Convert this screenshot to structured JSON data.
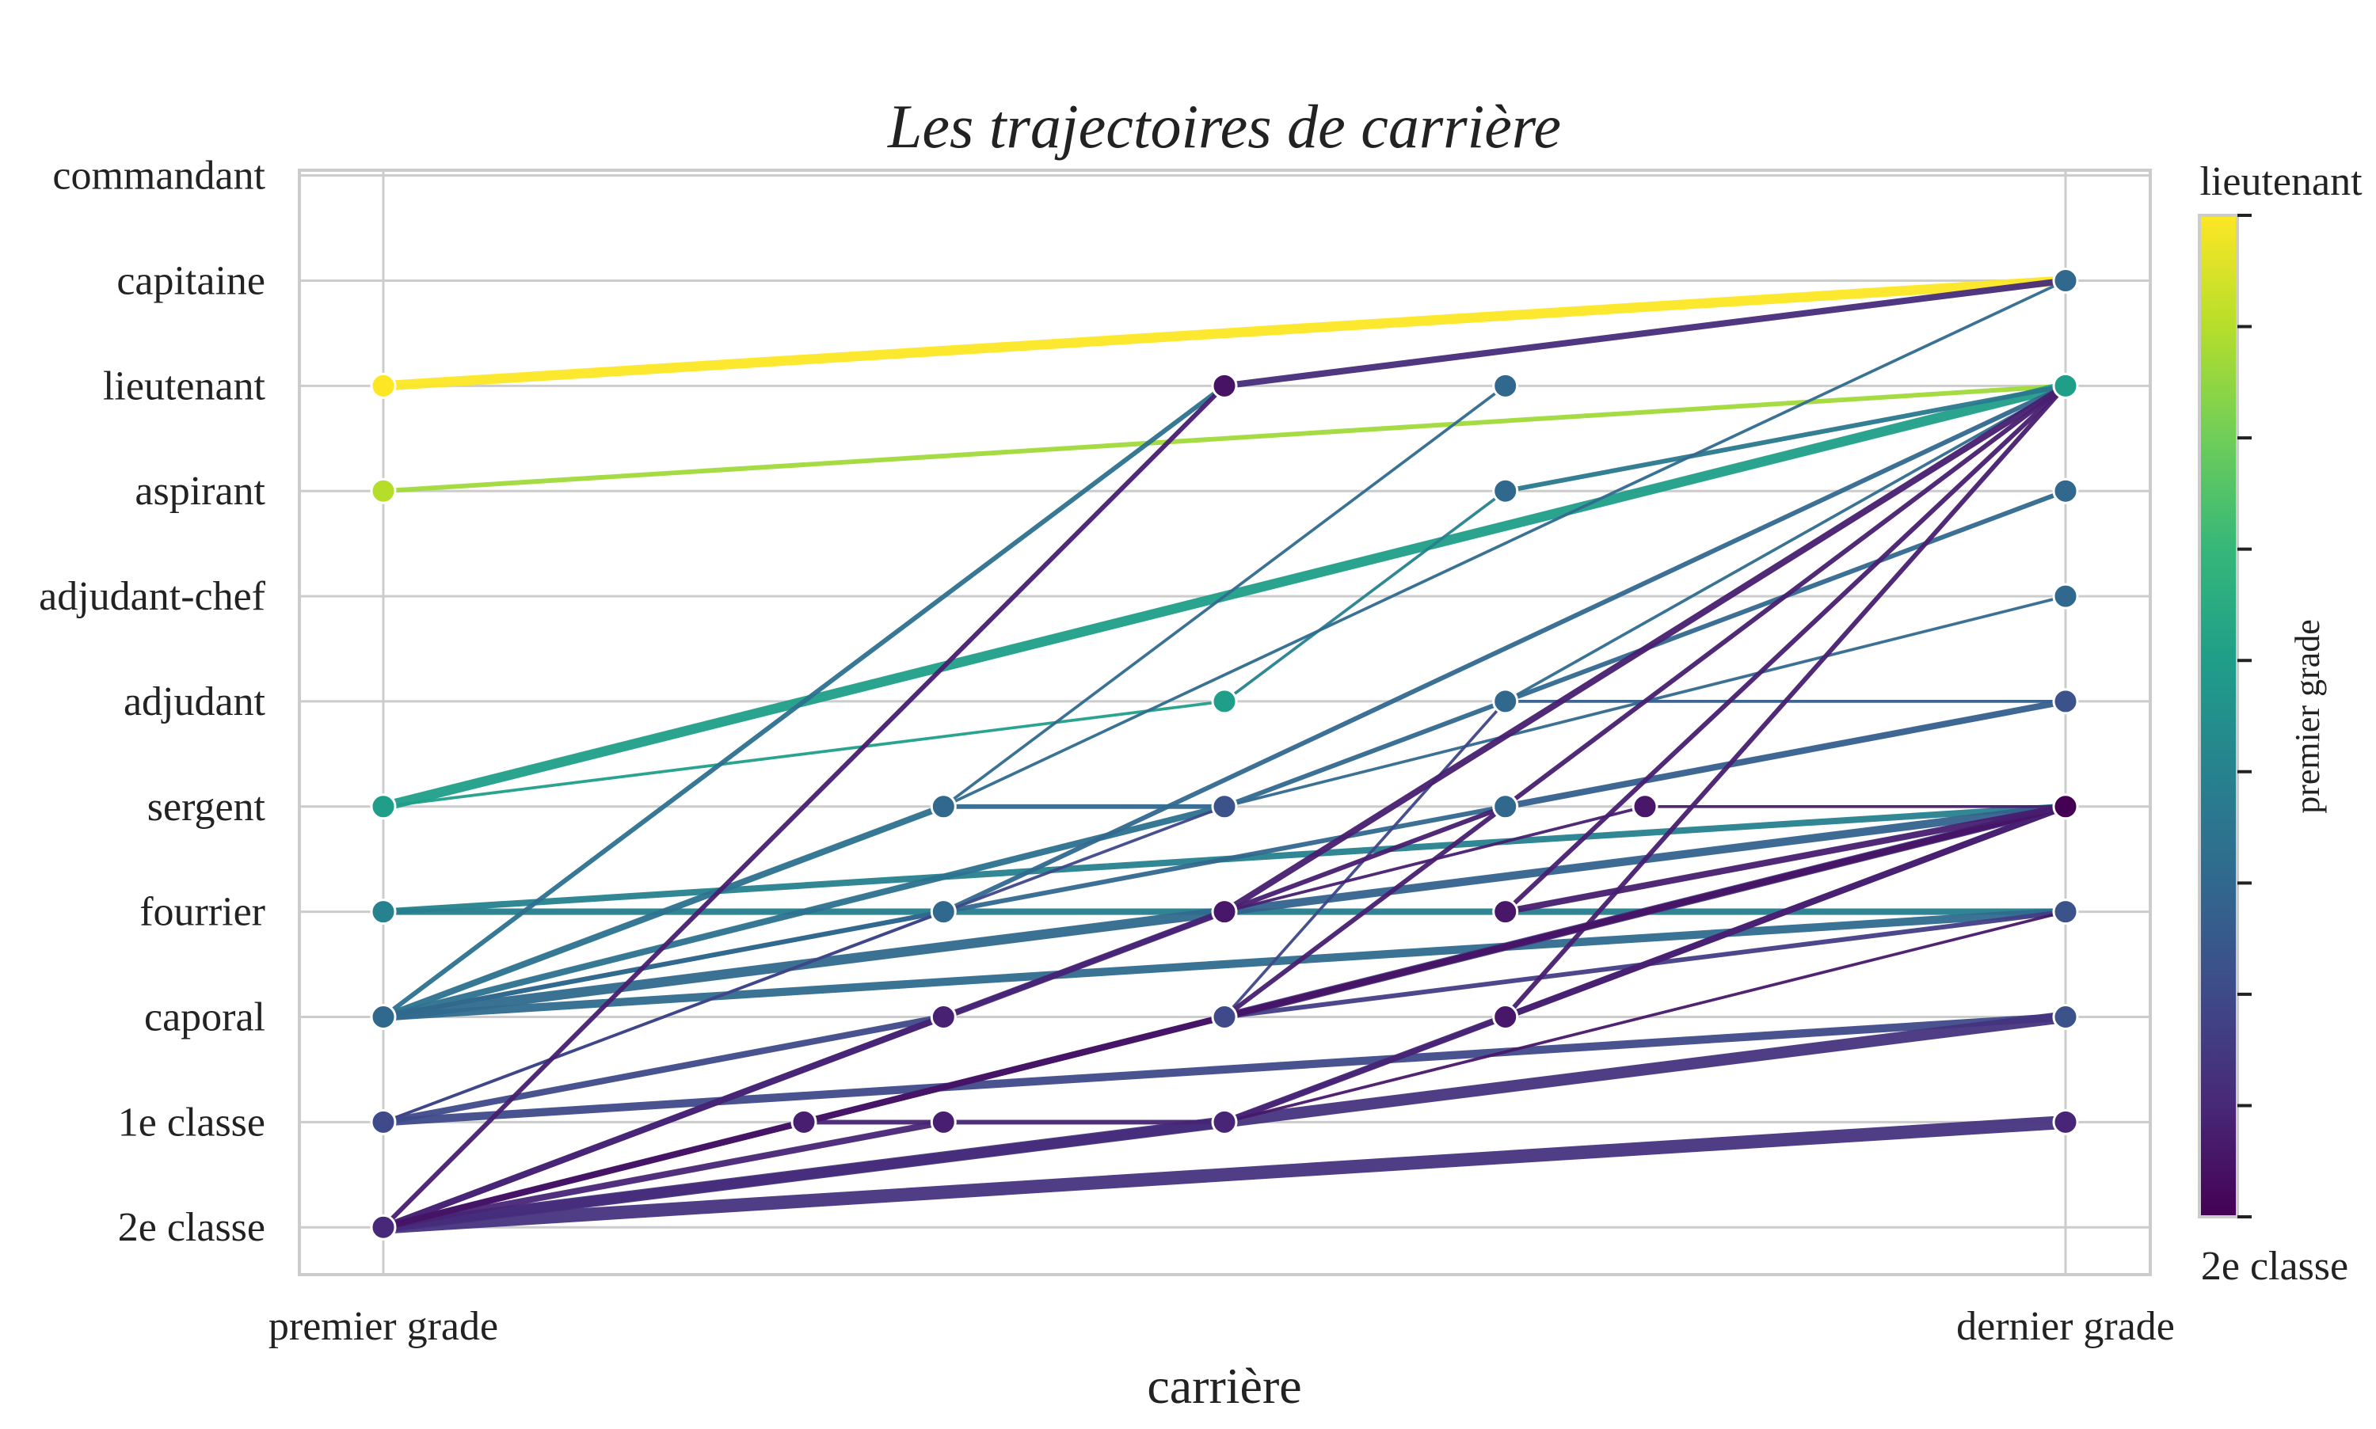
{
  "chart_data": {
    "type": "line",
    "title": "Les trajectoires de carrière",
    "xlabel": "carrière",
    "ylabel": "",
    "x_ticks": [
      "premier grade",
      "dernier grade"
    ],
    "y_categories": [
      "2e classe",
      "1e classe",
      "caporal",
      "fourrier",
      "sergent",
      "adjudant",
      "adjudant-chef",
      "aspirant",
      "lieutenant",
      "capitaine",
      "commandant"
    ],
    "xlim": [
      0,
      1
    ],
    "ylim": [
      -0.45,
      10.05
    ],
    "grid": true,
    "colorbar": {
      "title": "premier grade",
      "top_label": "lieutenant",
      "bottom_label": "2e classe",
      "colormap": "viridis",
      "colors": [
        "#440154",
        "#482878",
        "#3e4a89",
        "#31688e",
        "#26828e",
        "#1f9e89",
        "#35b779",
        "#6ece58",
        "#b5de2b",
        "#fde725"
      ],
      "levels": 9
    },
    "series": [
      {
        "points": [
          [
            0,
            8
          ],
          [
            1,
            9
          ]
        ],
        "color": "#fde725",
        "weight": 5
      },
      {
        "points": [
          [
            0,
            7
          ],
          [
            1,
            8
          ]
        ],
        "color": "#a0da39",
        "weight": 2
      },
      {
        "points": [
          [
            0,
            4
          ],
          [
            1,
            8
          ]
        ],
        "color": "#1f9e89",
        "weight": 5
      },
      {
        "points": [
          [
            0,
            4
          ],
          [
            0.5,
            5
          ]
        ],
        "color": "#1f9e89",
        "weight": 1
      },
      {
        "points": [
          [
            0.5,
            5
          ],
          [
            0.667,
            7
          ]
        ],
        "color": "#26828e",
        "weight": 1
      },
      {
        "points": [
          [
            0.667,
            7
          ],
          [
            1,
            8
          ]
        ],
        "color": "#2a788e",
        "weight": 2
      },
      {
        "points": [
          [
            0,
            3
          ],
          [
            1,
            4
          ]
        ],
        "color": "#26828e",
        "weight": 3
      },
      {
        "points": [
          [
            0,
            3
          ],
          [
            1,
            3
          ]
        ],
        "color": "#277f8e",
        "weight": 3
      },
      {
        "points": [
          [
            0,
            2
          ],
          [
            0.5,
            8
          ]
        ],
        "color": "#2c718e",
        "weight": 2
      },
      {
        "points": [
          [
            0,
            2
          ],
          [
            0.333,
            4
          ]
        ],
        "color": "#2c728e",
        "weight": 3
      },
      {
        "points": [
          [
            0.333,
            4
          ],
          [
            0.667,
            8
          ]
        ],
        "color": "#306a8e",
        "weight": 1
      },
      {
        "points": [
          [
            0.333,
            4
          ],
          [
            1,
            9
          ]
        ],
        "color": "#306a8e",
        "weight": 1
      },
      {
        "points": [
          [
            0.333,
            4
          ],
          [
            0.5,
            4
          ]
        ],
        "color": "#31688e",
        "weight": 2
      },
      {
        "points": [
          [
            0,
            2
          ],
          [
            0.5,
            4
          ]
        ],
        "color": "#2c728e",
        "weight": 3
      },
      {
        "points": [
          [
            0.5,
            4
          ],
          [
            1,
            6
          ]
        ],
        "color": "#31688e",
        "weight": 1
      },
      {
        "points": [
          [
            0.5,
            4
          ],
          [
            1,
            7
          ]
        ],
        "color": "#31688e",
        "weight": 2
      },
      {
        "points": [
          [
            0,
            2
          ],
          [
            0.333,
            3
          ]
        ],
        "color": "#31688e",
        "weight": 2
      },
      {
        "points": [
          [
            0.333,
            3
          ],
          [
            1,
            8
          ]
        ],
        "color": "#31688e",
        "weight": 2
      },
      {
        "points": [
          [
            0,
            2
          ],
          [
            1,
            3
          ]
        ],
        "color": "#2f6b8e",
        "weight": 4
      },
      {
        "points": [
          [
            0,
            2
          ],
          [
            0.5,
            3
          ]
        ],
        "color": "#306a8e",
        "weight": 5
      },
      {
        "points": [
          [
            0.5,
            3
          ],
          [
            1,
            4
          ]
        ],
        "color": "#33638d",
        "weight": 4
      },
      {
        "points": [
          [
            0,
            2
          ],
          [
            0.667,
            4
          ]
        ],
        "color": "#31688e",
        "weight": 2
      },
      {
        "points": [
          [
            0.667,
            4
          ],
          [
            1,
            5
          ]
        ],
        "color": "#355f8d",
        "weight": 3
      },
      {
        "points": [
          [
            0.667,
            5
          ],
          [
            1,
            8
          ]
        ],
        "color": "#2f6b8e",
        "weight": 1
      },
      {
        "points": [
          [
            0.667,
            5
          ],
          [
            1,
            5
          ]
        ],
        "color": "#355f8d",
        "weight": 1
      },
      {
        "points": [
          [
            0,
            1
          ],
          [
            1,
            2
          ]
        ],
        "color": "#3e4a89",
        "weight": 4
      },
      {
        "points": [
          [
            0,
            1
          ],
          [
            0.333,
            2
          ]
        ],
        "color": "#3e4a89",
        "weight": 3
      },
      {
        "points": [
          [
            0,
            1
          ],
          [
            0.5,
            4
          ]
        ],
        "color": "#3f4788",
        "weight": 1
      },
      {
        "points": [
          [
            0,
            1
          ],
          [
            0.333,
            3
          ]
        ],
        "color": "#3f4788",
        "weight": 1
      },
      {
        "points": [
          [
            0.5,
            2
          ],
          [
            1,
            4
          ]
        ],
        "color": "#453781",
        "weight": 4
      },
      {
        "points": [
          [
            0.5,
            2
          ],
          [
            1,
            3
          ]
        ],
        "color": "#433e85",
        "weight": 2
      },
      {
        "points": [
          [
            0.5,
            2
          ],
          [
            0.667,
            5
          ]
        ],
        "color": "#3f4788",
        "weight": 1
      },
      {
        "points": [
          [
            0,
            0
          ],
          [
            1,
            1
          ]
        ],
        "color": "#46337f",
        "weight": 7
      },
      {
        "points": [
          [
            0,
            0
          ],
          [
            1,
            2
          ]
        ],
        "color": "#463480",
        "weight": 6
      },
      {
        "points": [
          [
            0,
            0
          ],
          [
            0.5,
            1
          ]
        ],
        "color": "#472d7b",
        "weight": 5
      },
      {
        "points": [
          [
            0.5,
            1
          ],
          [
            1,
            4
          ]
        ],
        "color": "#482576",
        "weight": 3
      },
      {
        "points": [
          [
            0.5,
            1
          ],
          [
            0.667,
            2
          ]
        ],
        "color": "#482576",
        "weight": 2
      },
      {
        "points": [
          [
            0.667,
            2
          ],
          [
            1,
            4
          ]
        ],
        "color": "#482173",
        "weight": 3
      },
      {
        "points": [
          [
            0.667,
            2
          ],
          [
            1,
            8
          ]
        ],
        "color": "#481f70",
        "weight": 2
      },
      {
        "points": [
          [
            0,
            0
          ],
          [
            0.25,
            1
          ]
        ],
        "color": "#482576",
        "weight": 2
      },
      {
        "points": [
          [
            0.25,
            1
          ],
          [
            0.333,
            1
          ]
        ],
        "color": "#482576",
        "weight": 2
      },
      {
        "points": [
          [
            0,
            0
          ],
          [
            0.333,
            2
          ]
        ],
        "color": "#482576",
        "weight": 3
      },
      {
        "points": [
          [
            0.333,
            2
          ],
          [
            0.5,
            3
          ]
        ],
        "color": "#482576",
        "weight": 2
      },
      {
        "points": [
          [
            0,
            0
          ],
          [
            0.5,
            2
          ]
        ],
        "color": "#472d7b",
        "weight": 3
      },
      {
        "points": [
          [
            0.5,
            2
          ],
          [
            1,
            8
          ]
        ],
        "color": "#481f70",
        "weight": 2
      },
      {
        "points": [
          [
            0,
            0
          ],
          [
            0.5,
            3
          ]
        ],
        "color": "#482576",
        "weight": 3
      },
      {
        "points": [
          [
            0.5,
            3
          ],
          [
            1,
            8
          ]
        ],
        "color": "#481f70",
        "weight": 3
      },
      {
        "points": [
          [
            0.5,
            3
          ],
          [
            0.667,
            4
          ]
        ],
        "color": "#481f70",
        "weight": 2
      },
      {
        "points": [
          [
            0,
            0
          ],
          [
            0.333,
            1
          ]
        ],
        "color": "#482576",
        "weight": 3
      },
      {
        "points": [
          [
            0.333,
            1
          ],
          [
            0.5,
            1
          ]
        ],
        "color": "#482576",
        "weight": 2
      },
      {
        "points": [
          [
            0,
            0
          ],
          [
            0.5,
            8
          ]
        ],
        "color": "#481f70",
        "weight": 2
      },
      {
        "points": [
          [
            0.5,
            8
          ],
          [
            1,
            9
          ]
        ],
        "color": "#472c7a",
        "weight": 3
      },
      {
        "points": [
          [
            0.5,
            3
          ],
          [
            0.75,
            4
          ]
        ],
        "color": "#481f70",
        "weight": 1
      },
      {
        "points": [
          [
            0.75,
            4
          ],
          [
            1,
            4
          ]
        ],
        "color": "#481f70",
        "weight": 1
      },
      {
        "points": [
          [
            0,
            0
          ],
          [
            1,
            4
          ]
        ],
        "color": "#471365",
        "weight": 3
      },
      {
        "points": [
          [
            0.667,
            3
          ],
          [
            1,
            4
          ]
        ],
        "color": "#481f70",
        "weight": 3
      },
      {
        "points": [
          [
            0.667,
            3
          ],
          [
            1,
            8
          ]
        ],
        "color": "#481f70",
        "weight": 2
      },
      {
        "points": [
          [
            0.5,
            1
          ],
          [
            1,
            3
          ]
        ],
        "color": "#481769",
        "weight": 1
      }
    ],
    "markers": [
      {
        "point": [
          0,
          8
        ],
        "color": "#fde725"
      },
      {
        "point": [
          0,
          7
        ],
        "color": "#b5de2b"
      },
      {
        "point": [
          0,
          4
        ],
        "color": "#1f9e89"
      },
      {
        "point": [
          0,
          3
        ],
        "color": "#26828e"
      },
      {
        "point": [
          0,
          2
        ],
        "color": "#31688e"
      },
      {
        "point": [
          0,
          1
        ],
        "color": "#3e4a89"
      },
      {
        "point": [
          0,
          0
        ],
        "color": "#482878"
      },
      {
        "point": [
          0.333,
          4
        ],
        "color": "#31688e"
      },
      {
        "point": [
          0.333,
          3
        ],
        "color": "#31688e"
      },
      {
        "point": [
          0.333,
          2
        ],
        "color": "#482173"
      },
      {
        "point": [
          0.333,
          1
        ],
        "color": "#481f70"
      },
      {
        "point": [
          0.25,
          1
        ],
        "color": "#481f70"
      },
      {
        "point": [
          0.5,
          8
        ],
        "color": "#471365"
      },
      {
        "point": [
          0.5,
          5
        ],
        "color": "#1f9e89"
      },
      {
        "point": [
          0.5,
          4
        ],
        "color": "#3b528b"
      },
      {
        "point": [
          0.5,
          3
        ],
        "color": "#481769"
      },
      {
        "point": [
          0.5,
          2
        ],
        "color": "#3e4a89"
      },
      {
        "point": [
          0.5,
          1
        ],
        "color": "#482576"
      },
      {
        "point": [
          0.667,
          8
        ],
        "color": "#31688e"
      },
      {
        "point": [
          0.667,
          7
        ],
        "color": "#31688e"
      },
      {
        "point": [
          0.667,
          5
        ],
        "color": "#31688e"
      },
      {
        "point": [
          0.667,
          4
        ],
        "color": "#31688e"
      },
      {
        "point": [
          0.667,
          3
        ],
        "color": "#481769"
      },
      {
        "point": [
          0.667,
          2
        ],
        "color": "#481769"
      },
      {
        "point": [
          0.75,
          4
        ],
        "color": "#481769"
      },
      {
        "point": [
          1,
          9
        ],
        "color": "#31688e"
      },
      {
        "point": [
          1,
          8
        ],
        "color": "#1f9e89"
      },
      {
        "point": [
          1,
          7
        ],
        "color": "#31688e"
      },
      {
        "point": [
          1,
          6
        ],
        "color": "#31688e"
      },
      {
        "point": [
          1,
          5
        ],
        "color": "#3b528b"
      },
      {
        "point": [
          1,
          4
        ],
        "color": "#440154"
      },
      {
        "point": [
          1,
          3
        ],
        "color": "#3b528b"
      },
      {
        "point": [
          1,
          2
        ],
        "color": "#3b528b"
      },
      {
        "point": [
          1,
          1
        ],
        "color": "#482576"
      }
    ]
  }
}
